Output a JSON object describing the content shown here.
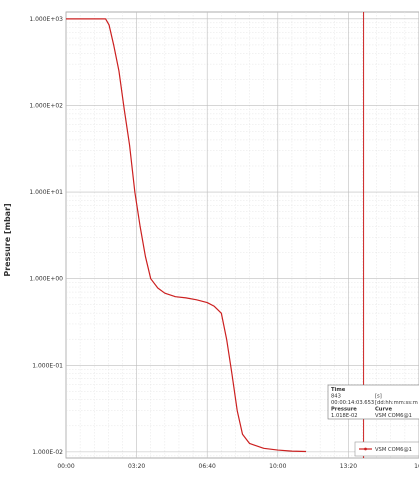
{
  "chart_data": {
    "type": "line",
    "ylabel": "Pressure [mbar]",
    "yscale": "log",
    "ylim": [
      0.0085,
      1200
    ],
    "xlim": [
      0,
      1000
    ],
    "y_tick_values": [
      1000,
      100,
      10,
      1,
      0.1,
      0.01
    ],
    "y_tick_labels": [
      "1.000E+03",
      "1.000E+02",
      "1.000E+01",
      "1.000E+00",
      "1.000E-01",
      "1.000E-02"
    ],
    "x_tick_values": [
      0,
      200,
      400,
      600,
      800,
      1000
    ],
    "x_tick_labels": [
      "00:00",
      "03:20",
      "06:40",
      "10:00",
      "13:20",
      "16:"
    ],
    "grid": true,
    "series": [
      {
        "name": "VSM COM6@1",
        "color": "#cc2020",
        "points": [
          [
            0,
            1000
          ],
          [
            60,
            1000
          ],
          [
            112,
            1000
          ],
          [
            122,
            850
          ],
          [
            135,
            500
          ],
          [
            150,
            250
          ],
          [
            165,
            90
          ],
          [
            180,
            35
          ],
          [
            195,
            10
          ],
          [
            210,
            4
          ],
          [
            225,
            1.8
          ],
          [
            240,
            1.0
          ],
          [
            260,
            0.78
          ],
          [
            280,
            0.68
          ],
          [
            310,
            0.62
          ],
          [
            340,
            0.6
          ],
          [
            370,
            0.57
          ],
          [
            400,
            0.53
          ],
          [
            420,
            0.48
          ],
          [
            440,
            0.4
          ],
          [
            455,
            0.2
          ],
          [
            470,
            0.08
          ],
          [
            485,
            0.03
          ],
          [
            500,
            0.016
          ],
          [
            520,
            0.0125
          ],
          [
            560,
            0.011
          ],
          [
            600,
            0.0105
          ],
          [
            640,
            0.0102
          ],
          [
            680,
            0.0101
          ]
        ]
      }
    ],
    "cursor": {
      "x": 843,
      "color": "#cc2020"
    },
    "tooltip": {
      "time_label": "Time",
      "time_value": "843",
      "time_unit": "[s]",
      "time_formatted": "00:00:14:03.653",
      "time_format": "[dd:hh:mm:ss:m",
      "pressure_label": "Pressure",
      "pressure_value": "1.018E-02",
      "curve_label": "Curve",
      "curve_value": "VSM COM6@1"
    },
    "legend": {
      "entry": "VSM COM6@1",
      "placement": "bottom-right"
    }
  }
}
